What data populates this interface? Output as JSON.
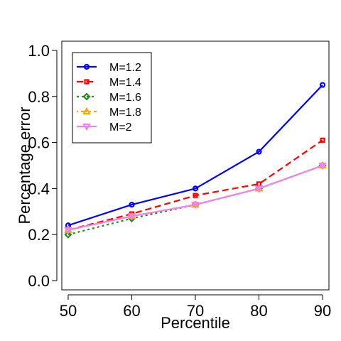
{
  "chart_data": {
    "type": "line",
    "title": "",
    "xlabel": "Percentile",
    "ylabel": "Percentage error",
    "x": [
      50,
      60,
      70,
      80,
      90
    ],
    "xticks": [
      "50",
      "60",
      "70",
      "80",
      "90"
    ],
    "yticks": [
      "0.0",
      "0.2",
      "0.4",
      "0.6",
      "0.8",
      "1.0"
    ],
    "xlim": [
      49,
      91
    ],
    "ylim": [
      -0.04,
      1.04
    ],
    "legend_position": "top-left",
    "grid": false,
    "series": [
      {
        "name": "M=1.2",
        "values": [
          0.24,
          0.33,
          0.4,
          0.56,
          0.85
        ],
        "color": "#0000ff",
        "marker": "circle",
        "dash": "solid"
      },
      {
        "name": "M=1.4",
        "values": [
          0.22,
          0.29,
          0.37,
          0.42,
          0.61
        ],
        "color": "#ff0000",
        "marker": "square",
        "dash": "dashed"
      },
      {
        "name": "M=1.6",
        "values": [
          0.2,
          0.27,
          0.33,
          0.4,
          0.5
        ],
        "color": "#228b22",
        "marker": "diamond",
        "dash": "dotted"
      },
      {
        "name": "M=1.8",
        "values": [
          0.22,
          0.28,
          0.33,
          0.4,
          0.5
        ],
        "color": "#ffa500",
        "marker": "triangle-up",
        "dash": "dotdash"
      },
      {
        "name": "M=2",
        "values": [
          0.22,
          0.28,
          0.33,
          0.4,
          0.5
        ],
        "color": "#ee82ee",
        "marker": "triangle-down",
        "dash": "solid"
      }
    ]
  }
}
